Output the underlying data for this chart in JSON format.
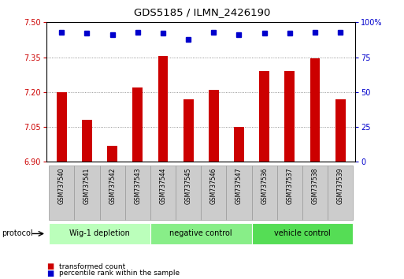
{
  "title": "GDS5185 / ILMN_2426190",
  "samples": [
    "GSM737540",
    "GSM737541",
    "GSM737542",
    "GSM737543",
    "GSM737544",
    "GSM737545",
    "GSM737546",
    "GSM737547",
    "GSM737536",
    "GSM737537",
    "GSM737538",
    "GSM737539"
  ],
  "transformed_counts": [
    7.2,
    7.08,
    6.97,
    7.22,
    7.355,
    7.17,
    7.21,
    7.05,
    7.29,
    7.29,
    7.345,
    7.17
  ],
  "percentile_ranks": [
    93,
    92,
    91,
    93,
    92,
    88,
    93,
    91,
    92,
    92,
    93,
    93
  ],
  "ylim_left": [
    6.9,
    7.5
  ],
  "ylim_right": [
    0,
    100
  ],
  "yticks_left": [
    6.9,
    7.05,
    7.2,
    7.35,
    7.5
  ],
  "yticks_right": [
    0,
    25,
    50,
    75,
    100
  ],
  "bar_color": "#cc0000",
  "dot_color": "#0000cc",
  "groups": [
    {
      "label": "Wig-1 depletion",
      "start": 0,
      "end": 3,
      "color": "#bbffbb"
    },
    {
      "label": "negative control",
      "start": 4,
      "end": 7,
      "color": "#88ee88"
    },
    {
      "label": "vehicle control",
      "start": 8,
      "end": 11,
      "color": "#55dd55"
    }
  ],
  "protocol_label": "protocol",
  "legend_bar_label": "transformed count",
  "legend_dot_label": "percentile rank within the sample",
  "grid_color": "#777777",
  "tick_label_color_left": "#cc0000",
  "tick_label_color_right": "#0000cc",
  "bar_width": 0.4,
  "sample_box_color": "#cccccc",
  "sample_box_edge": "#999999"
}
